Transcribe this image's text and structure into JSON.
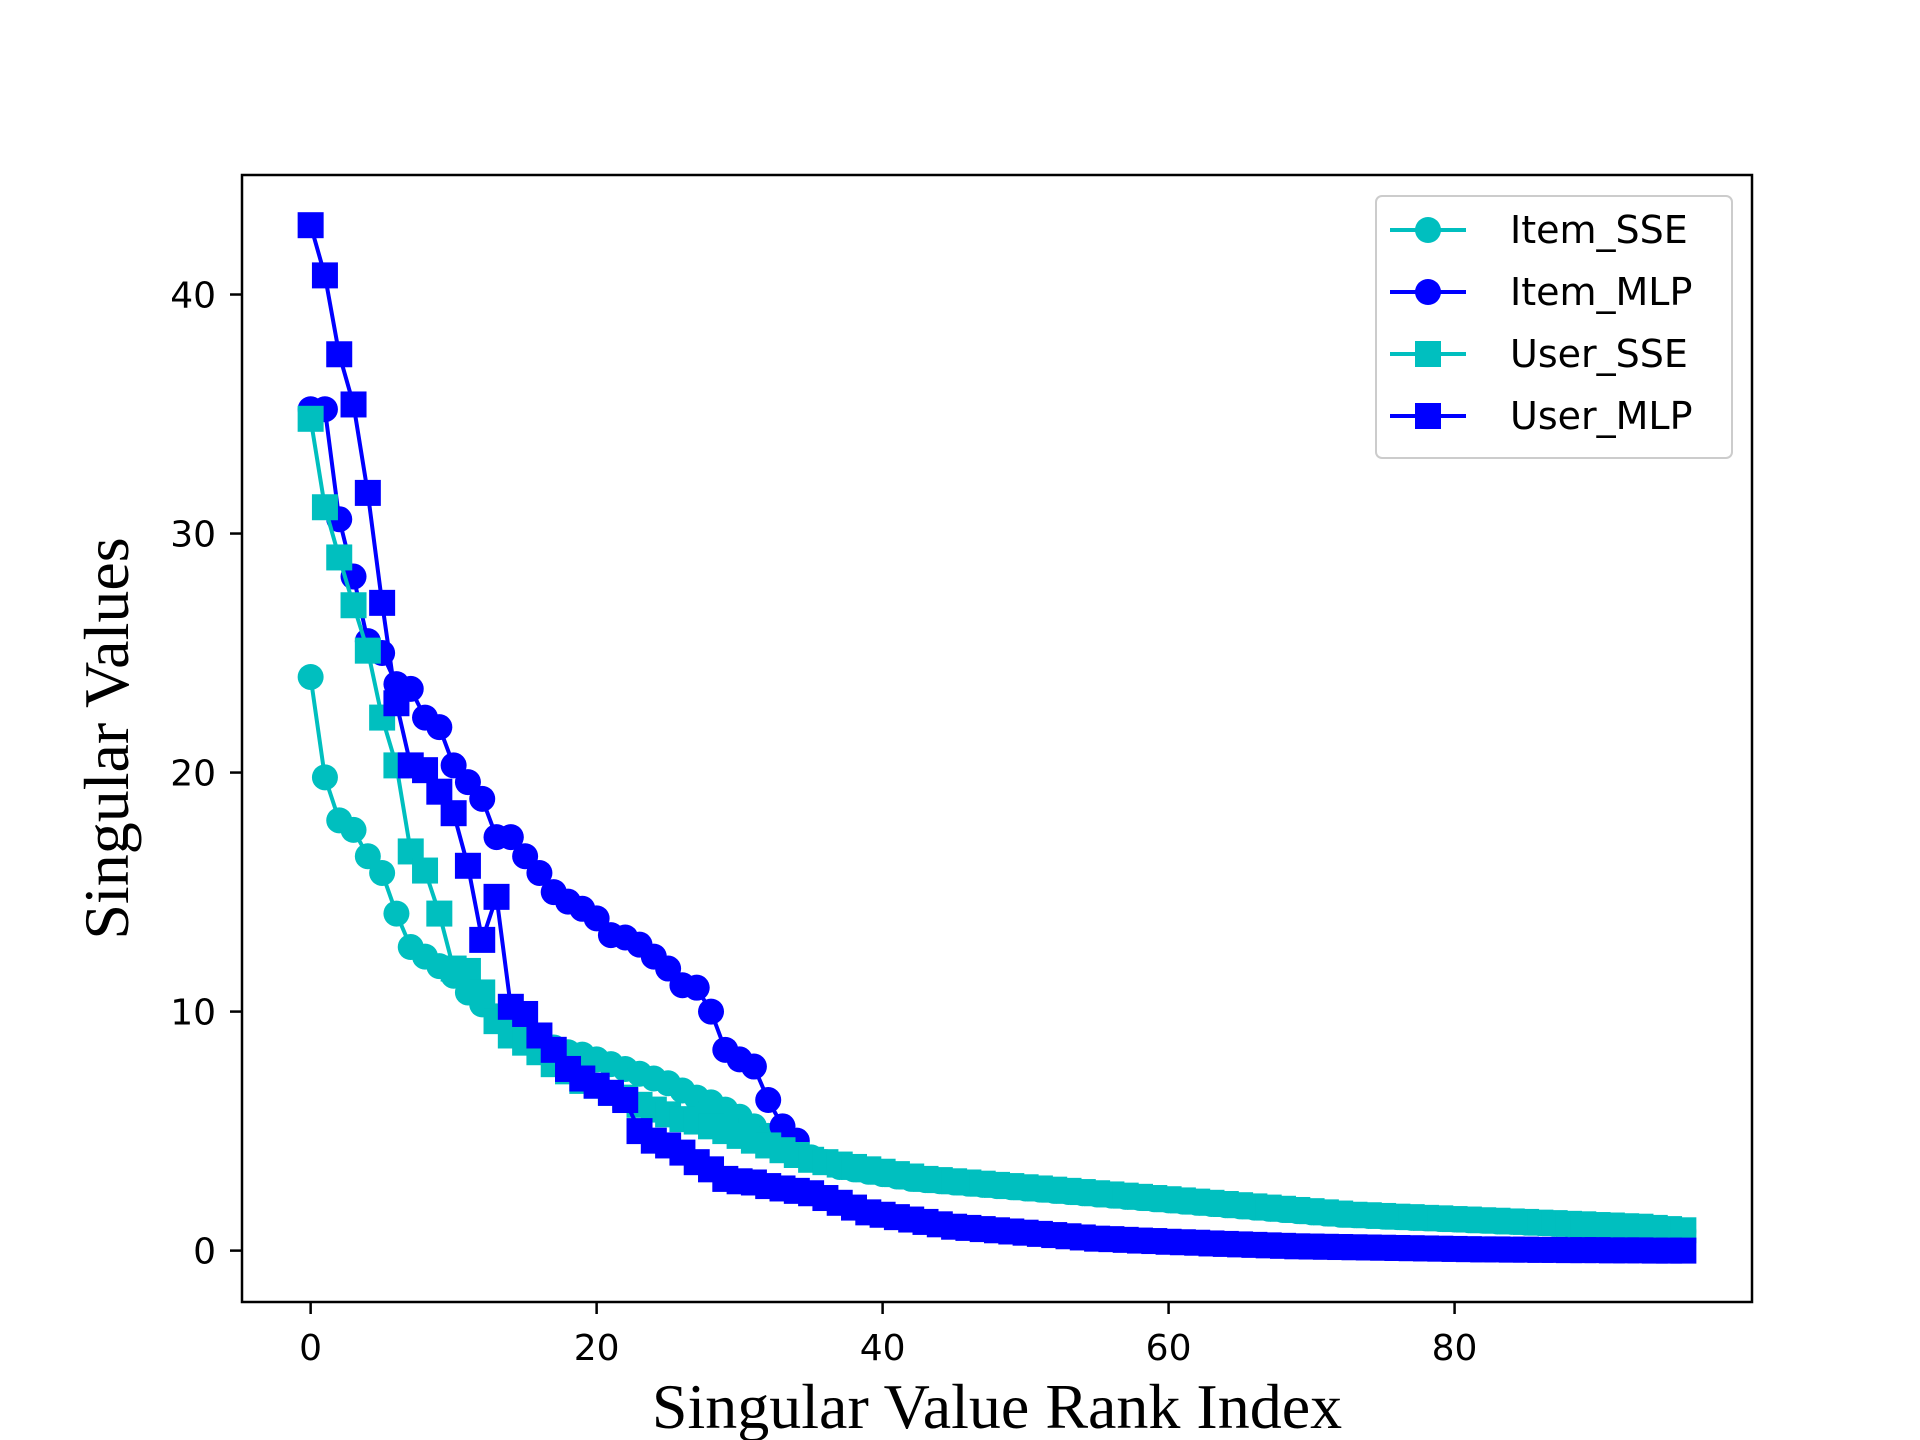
{
  "chart_data": {
    "type": "line",
    "title": "",
    "xlabel": "Singular Value Rank Index",
    "ylabel": "Singular Values",
    "xlim": [
      -4.8,
      100.8
    ],
    "ylim": [
      -2.15,
      45.0
    ],
    "xticks": [
      0,
      20,
      40,
      60,
      80
    ],
    "yticks": [
      0,
      10,
      20,
      30,
      40
    ],
    "grid": false,
    "legend_position": "top-right",
    "colors": {
      "sse": "#00BFBF",
      "mlp": "#0000FF"
    },
    "series": [
      {
        "name": "Item_SSE",
        "marker": "circle",
        "color": "#00BFBF",
        "values": [
          24.0,
          19.8,
          18.0,
          17.6,
          16.5,
          15.8,
          14.1,
          12.7,
          12.3,
          11.9,
          11.5,
          10.8,
          10.3,
          9.8,
          9.4,
          9.0,
          8.7,
          8.5,
          8.3,
          8.2,
          8.0,
          7.8,
          7.6,
          7.4,
          7.2,
          7.0,
          6.7,
          6.4,
          6.2,
          5.9,
          5.6,
          5.2,
          4.8,
          4.4,
          4.1,
          3.9,
          3.7,
          3.5,
          3.4,
          3.3,
          3.2,
          3.1,
          3.0,
          2.95,
          2.9,
          2.85,
          2.8,
          2.75,
          2.7,
          2.65,
          2.6,
          2.55,
          2.5,
          2.45,
          2.4,
          2.35,
          2.3,
          2.25,
          2.2,
          2.15,
          2.1,
          2.05,
          2.0,
          1.95,
          1.9,
          1.85,
          1.8,
          1.75,
          1.7,
          1.65,
          1.6,
          1.55,
          1.5,
          1.48,
          1.45,
          1.42,
          1.4,
          1.37,
          1.35,
          1.32,
          1.3,
          1.27,
          1.25,
          1.22,
          1.2,
          1.17,
          1.15,
          1.12,
          1.1,
          1.07,
          1.05,
          1.02,
          1.0,
          0.95,
          0.9,
          0.85,
          0.8
        ]
      },
      {
        "name": "Item_MLP",
        "marker": "circle",
        "color": "#0000FF",
        "values": [
          35.2,
          35.2,
          30.6,
          28.2,
          25.5,
          25.0,
          23.7,
          23.5,
          22.3,
          21.9,
          20.3,
          19.6,
          18.9,
          17.3,
          17.3,
          16.5,
          15.8,
          15.0,
          14.6,
          14.3,
          13.9,
          13.2,
          13.1,
          12.8,
          12.3,
          11.8,
          11.1,
          11.0,
          10.0,
          8.4,
          8.0,
          7.7,
          6.3,
          5.2,
          4.6
        ]
      },
      {
        "name": "User_SSE",
        "marker": "square",
        "color": "#00BFBF",
        "values": [
          34.8,
          31.1,
          29.0,
          27.0,
          25.1,
          22.3,
          20.3,
          16.7,
          15.9,
          14.1,
          11.8,
          11.7,
          10.8,
          9.6,
          9.0,
          8.7,
          8.3,
          7.8,
          7.5,
          7.1,
          6.9,
          6.6,
          6.4,
          6.1,
          5.9,
          5.7,
          5.5,
          5.4,
          5.2,
          5.0,
          4.8,
          4.6,
          4.4,
          4.2,
          4.0,
          3.8,
          3.7,
          3.6,
          3.5,
          3.4,
          3.3,
          3.2,
          3.1,
          3.0,
          2.95,
          2.9,
          2.85,
          2.8,
          2.75,
          2.7,
          2.65,
          2.6,
          2.55,
          2.5,
          2.45,
          2.4,
          2.35,
          2.3,
          2.25,
          2.2,
          2.15,
          2.1,
          2.05,
          2.0,
          1.95,
          1.9,
          1.85,
          1.8,
          1.75,
          1.7,
          1.65,
          1.6,
          1.55,
          1.5,
          1.48,
          1.45,
          1.42,
          1.4,
          1.37,
          1.35,
          1.32,
          1.3,
          1.27,
          1.25,
          1.22,
          1.2,
          1.17,
          1.15,
          1.12,
          1.1,
          1.07,
          1.05,
          1.02,
          1.0,
          0.95,
          0.9,
          0.85
        ]
      },
      {
        "name": "User_MLP",
        "marker": "square",
        "color": "#0000FF",
        "values": [
          42.9,
          40.8,
          37.5,
          35.4,
          31.7,
          27.1,
          22.9,
          20.3,
          20.1,
          19.2,
          18.3,
          16.1,
          13.0,
          14.8,
          10.2,
          9.9,
          9.0,
          8.4,
          7.6,
          7.2,
          6.9,
          6.6,
          6.3,
          5.0,
          4.6,
          4.4,
          4.1,
          3.7,
          3.4,
          3.0,
          2.9,
          2.85,
          2.7,
          2.6,
          2.5,
          2.4,
          2.2,
          2.0,
          1.8,
          1.6,
          1.5,
          1.4,
          1.3,
          1.2,
          1.1,
          1.0,
          0.95,
          0.9,
          0.85,
          0.8,
          0.75,
          0.7,
          0.65,
          0.6,
          0.55,
          0.5,
          0.48,
          0.45,
          0.42,
          0.4,
          0.37,
          0.35,
          0.33,
          0.3,
          0.28,
          0.26,
          0.24,
          0.22,
          0.2,
          0.18,
          0.17,
          0.16,
          0.15,
          0.14,
          0.13,
          0.12,
          0.11,
          0.1,
          0.09,
          0.08,
          0.07,
          0.06,
          0.05,
          0.05,
          0.04,
          0.04,
          0.03,
          0.03,
          0.02,
          0.02,
          0.02,
          0.01,
          0.01,
          0.01,
          0.0,
          0.0,
          0.0
        ]
      }
    ]
  }
}
